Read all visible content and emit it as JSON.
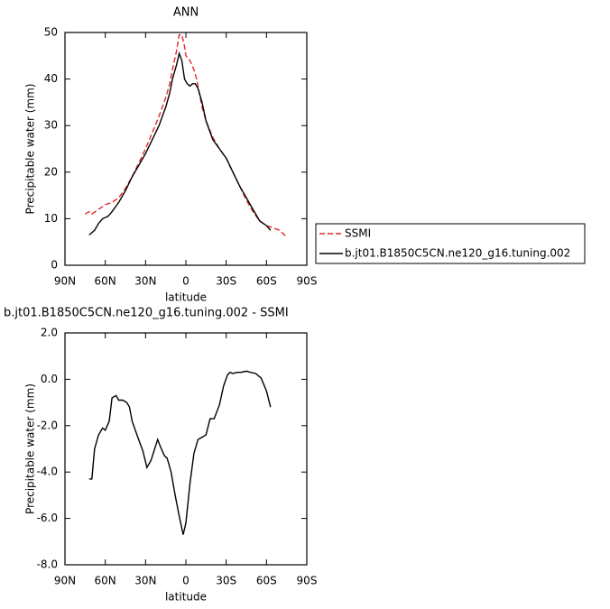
{
  "chart_data": [
    {
      "type": "line",
      "title": "ANN",
      "xlabel": "latitude",
      "ylabel": "Precipitable water (mm)",
      "xlim": [
        90,
        -90
      ],
      "ylim": [
        0,
        50
      ],
      "xticks": [
        {
          "value": 90,
          "label": "90N"
        },
        {
          "value": 60,
          "label": "60N"
        },
        {
          "value": 30,
          "label": "30N"
        },
        0,
        {
          "value": -30,
          "label": "30S"
        },
        {
          "value": -60,
          "label": "60S"
        },
        {
          "value": -90,
          "label": "90S"
        }
      ],
      "yticks": [
        0,
        10,
        20,
        30,
        40,
        50
      ],
      "legend": "right",
      "series": [
        {
          "name": "SSMI",
          "color": "#e8262b",
          "dash": true,
          "x": [
            75,
            72,
            70,
            65,
            60,
            55,
            50,
            45,
            40,
            35,
            30,
            25,
            20,
            15,
            12,
            10,
            7,
            5,
            3,
            1,
            0,
            -3,
            -6,
            -8,
            -10,
            -12,
            -15,
            -20,
            -25,
            -30,
            -35,
            -40,
            -45,
            -50,
            -55,
            -60,
            -65,
            -70,
            -75
          ],
          "values": [
            11,
            11.5,
            11,
            12,
            13,
            13.5,
            14.5,
            16.5,
            19,
            22,
            25,
            28.5,
            32,
            36,
            39,
            42,
            46,
            49.5,
            49.5,
            47,
            45,
            44,
            42,
            40,
            37,
            34,
            31,
            27.5,
            25,
            23,
            20,
            17,
            14,
            11.5,
            9.5,
            8.5,
            8,
            7.5,
            6
          ]
        },
        {
          "name": "b.jt01.B1850C5CN.ne120_g16.tuning.002",
          "color": "#000000",
          "dash": false,
          "x": [
            72,
            68,
            65,
            62,
            58,
            55,
            50,
            45,
            40,
            35,
            30,
            25,
            20,
            15,
            12,
            10,
            7,
            5,
            3,
            1,
            -1,
            -3,
            -5,
            -7,
            -9,
            -12,
            -15,
            -20,
            -25,
            -30,
            -35,
            -40,
            -45,
            -50,
            -55,
            -60,
            -63
          ],
          "values": [
            6.5,
            7.5,
            9,
            10,
            10.5,
            11.5,
            13.5,
            16,
            19,
            21.5,
            24,
            27,
            30,
            34,
            37,
            40,
            43,
            45.5,
            44,
            40,
            39,
            38.5,
            39,
            39,
            38,
            35,
            31,
            27,
            25,
            23,
            20,
            17,
            14.5,
            12,
            9.5,
            8.5,
            7.5
          ]
        }
      ]
    },
    {
      "type": "line",
      "title": "b.jt01.B1850C5CN.ne120_g16.tuning.002 - SSMI",
      "xlabel": "latitude",
      "ylabel": "Precipitable water (mm)",
      "xlim": [
        90,
        -90
      ],
      "ylim": [
        -8,
        2
      ],
      "xticks": [
        {
          "value": 90,
          "label": "90N"
        },
        {
          "value": 60,
          "label": "60N"
        },
        {
          "value": 30,
          "label": "30N"
        },
        0,
        {
          "value": -30,
          "label": "30S"
        },
        {
          "value": -60,
          "label": "60S"
        },
        {
          "value": -90,
          "label": "90S"
        }
      ],
      "yticks": [
        {
          "value": 2,
          "label": "2.0"
        },
        {
          "value": 0,
          "label": "0.0"
        },
        {
          "value": -2,
          "label": "-2.0"
        },
        {
          "value": -4,
          "label": "-4.0"
        },
        {
          "value": -6,
          "label": "-6.0"
        },
        {
          "value": -8,
          "label": "-8.0"
        }
      ],
      "color": "#000000",
      "x": [
        72,
        70,
        68,
        65,
        62,
        60,
        57,
        55,
        52,
        50,
        47,
        44,
        42,
        40,
        37,
        32,
        29,
        26,
        21,
        19,
        16,
        14,
        11,
        8,
        5,
        2,
        0,
        -3,
        -6,
        -9,
        -12,
        -15,
        -18,
        -21,
        -25,
        -28,
        -31,
        -33,
        -35,
        -38,
        -41,
        -45,
        -48,
        -52,
        -56,
        -60,
        -63
      ],
      "values": [
        -4.3,
        -4.3,
        -3,
        -2.4,
        -2.1,
        -2.2,
        -1.8,
        -0.8,
        -0.7,
        -0.9,
        -0.9,
        -1.0,
        -1.2,
        -1.8,
        -2.3,
        -3.1,
        -3.8,
        -3.5,
        -2.6,
        -2.9,
        -3.3,
        -3.4,
        -4.0,
        -5.0,
        -5.9,
        -6.7,
        -6.2,
        -4.5,
        -3.2,
        -2.6,
        -2.5,
        -2.4,
        -1.7,
        -1.7,
        -1.1,
        -0.3,
        0.2,
        0.3,
        0.25,
        0.3,
        0.3,
        0.35,
        0.3,
        0.25,
        0.05,
        -0.5,
        -1.2
      ]
    }
  ]
}
